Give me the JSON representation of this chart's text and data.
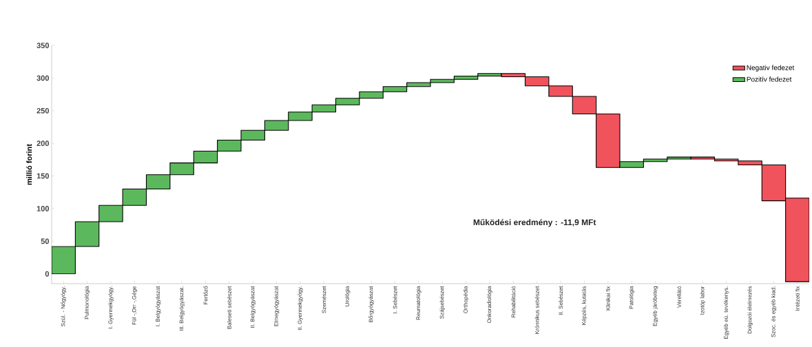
{
  "chart_data": {
    "type": "bar",
    "ylabel": "millió forint",
    "categories": [
      "Szül. - Nőgyógy.",
      "Pulmonológia",
      "I. Gyermekgyógy.",
      "Fül -,Orr -,Gége",
      "I. Belgyógyászat",
      "III. Belgyógyászat.",
      "Fertőző",
      "Baleseti sebészet",
      "II. Belgyógyászat",
      "Elmegyógyászat",
      "II. Gyermekgyógy.",
      "Szemészet",
      "Urológia",
      "Bőrgyógyászat",
      "I. Sebészet",
      "Reumatológia",
      "Szájsebészet",
      "Orthopédia",
      "Onkoradiológia",
      "Rehabilitáció",
      "Krónnikus sebészet",
      "II. Sebészet",
      "Képzés, kutatás",
      "Klinikai fix",
      "Patológia",
      "Egyéb járóbeteg",
      "Vérellátó",
      "Izotóp labor",
      "Egyéb eü. tevékenys.",
      "Dolgozói élelmezés",
      "Szoc. és egyéb kiad.",
      "Intézeti fix"
    ],
    "series": [
      {
        "name": "Negativ fedezet",
        "color": "#f0535c",
        "base": [
          null,
          null,
          null,
          null,
          null,
          null,
          null,
          null,
          null,
          null,
          null,
          null,
          null,
          null,
          null,
          null,
          null,
          null,
          null,
          307,
          302,
          288,
          272,
          245,
          null,
          null,
          null,
          179,
          176,
          173,
          167,
          116
        ],
        "values": [
          null,
          null,
          null,
          null,
          null,
          null,
          null,
          null,
          null,
          null,
          null,
          null,
          null,
          null,
          null,
          null,
          null,
          null,
          null,
          -5,
          -14,
          -16,
          -27,
          -82,
          null,
          null,
          null,
          -3,
          -3,
          -6,
          -55,
          -128
        ]
      },
      {
        "name": "Pozitív fedezet",
        "color": "#5cb85c",
        "base": [
          0,
          42,
          80,
          105,
          130,
          152,
          170,
          188,
          205,
          220,
          235,
          248,
          259,
          269,
          279,
          287,
          293,
          298,
          303,
          null,
          null,
          null,
          null,
          null,
          163,
          172,
          176,
          null,
          null,
          null,
          null,
          null
        ],
        "values": [
          42,
          38,
          25,
          25,
          22,
          18,
          18,
          17,
          15,
          15,
          13,
          11,
          10,
          10,
          8,
          6,
          5,
          5,
          4,
          null,
          null,
          null,
          null,
          null,
          9,
          4,
          3,
          null,
          null,
          null,
          null,
          null
        ]
      }
    ],
    "ylim": [
      -15,
      350
    ],
    "yticks": [
      0,
      50,
      100,
      150,
      200,
      250,
      300,
      350
    ],
    "legend": "top right",
    "annotations": [
      "Működési eredmény : -11,9 MFt"
    ]
  }
}
